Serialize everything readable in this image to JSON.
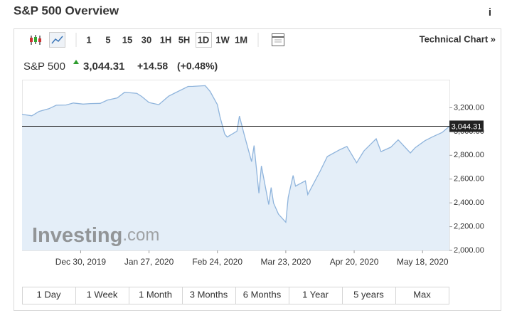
{
  "header": {
    "title": "S&P 500 Overview",
    "info": "i"
  },
  "toolbar": {
    "intervals": [
      "1",
      "5",
      "15",
      "30",
      "1H",
      "5H",
      "1D",
      "1W",
      "1M"
    ],
    "link": "Technical Chart »"
  },
  "quote": {
    "name": "S&P 500",
    "price": "3,044.31",
    "change": "+14.58",
    "change_percent": "(+0.48%)"
  },
  "watermark": {
    "brand": "Investing",
    "suffix": ".com"
  },
  "chart_data": {
    "type": "area",
    "x": [
      "2019-12-06",
      "2019-12-10",
      "2019-12-13",
      "2019-12-17",
      "2019-12-20",
      "2019-12-24",
      "2019-12-27",
      "2019-12-31",
      "2020-01-03",
      "2020-01-07",
      "2020-01-10",
      "2020-01-14",
      "2020-01-17",
      "2020-01-22",
      "2020-01-24",
      "2020-01-27",
      "2020-01-31",
      "2020-02-04",
      "2020-02-07",
      "2020-02-12",
      "2020-02-14",
      "2020-02-19",
      "2020-02-21",
      "2020-02-24",
      "2020-02-25",
      "2020-02-27",
      "2020-02-28",
      "2020-03-03",
      "2020-03-04",
      "2020-03-06",
      "2020-03-09",
      "2020-03-10",
      "2020-03-12",
      "2020-03-13",
      "2020-03-16",
      "2020-03-17",
      "2020-03-18",
      "2020-03-20",
      "2020-03-23",
      "2020-03-24",
      "2020-03-26",
      "2020-03-27",
      "2020-03-31",
      "2020-04-01",
      "2020-04-06",
      "2020-04-09",
      "2020-04-14",
      "2020-04-17",
      "2020-04-21",
      "2020-04-24",
      "2020-04-29",
      "2020-05-01",
      "2020-05-05",
      "2020-05-08",
      "2020-05-13",
      "2020-05-15",
      "2020-05-19",
      "2020-05-22",
      "2020-05-26",
      "2020-05-29"
    ],
    "values": [
      3145,
      3132,
      3169,
      3192,
      3221,
      3223,
      3240,
      3231,
      3235,
      3237,
      3265,
      3283,
      3330,
      3321,
      3295,
      3244,
      3226,
      3297,
      3328,
      3379,
      3380,
      3386,
      3338,
      3226,
      3128,
      2979,
      2954,
      3003,
      3130,
      2972,
      2747,
      2882,
      2481,
      2711,
      2386,
      2529,
      2398,
      2305,
      2237,
      2447,
      2630,
      2541,
      2585,
      2470,
      2664,
      2790,
      2846,
      2875,
      2737,
      2837,
      2939,
      2831,
      2868,
      2930,
      2820,
      2864,
      2923,
      2955,
      2992,
      3044.31
    ],
    "color": "#8fb4dc",
    "fill": "#e4eef8",
    "xlim": [
      "2019-12-06",
      "2020-05-29"
    ],
    "xticks": [
      {
        "value": "2019-12-30",
        "label": "Dec 30, 2019"
      },
      {
        "value": "2020-01-27",
        "label": "Jan 27, 2020"
      },
      {
        "value": "2020-02-24",
        "label": "Feb 24, 2020"
      },
      {
        "value": "2020-03-23",
        "label": "Mar 23, 2020"
      },
      {
        "value": "2020-04-20",
        "label": "Apr 20, 2020"
      },
      {
        "value": "2020-05-18",
        "label": "May 18, 2020"
      }
    ],
    "ylim": [
      2000,
      3430
    ],
    "yticks": [
      {
        "value": 2000,
        "label": "2,000.00"
      },
      {
        "value": 2200,
        "label": "2,200.00"
      },
      {
        "value": 2400,
        "label": "2,400.00"
      },
      {
        "value": 2600,
        "label": "2,600.00"
      },
      {
        "value": 2800,
        "label": "2,800.00"
      },
      {
        "value": 3000,
        "label": "3,000.00"
      },
      {
        "value": 3200,
        "label": "3,200.00"
      }
    ],
    "reference_line": {
      "value": 3044.31,
      "label": "3,044.31"
    }
  },
  "ranges": [
    "1 Day",
    "1 Week",
    "1 Month",
    "3 Months",
    "6 Months",
    "1 Year",
    "5 years",
    "Max"
  ]
}
